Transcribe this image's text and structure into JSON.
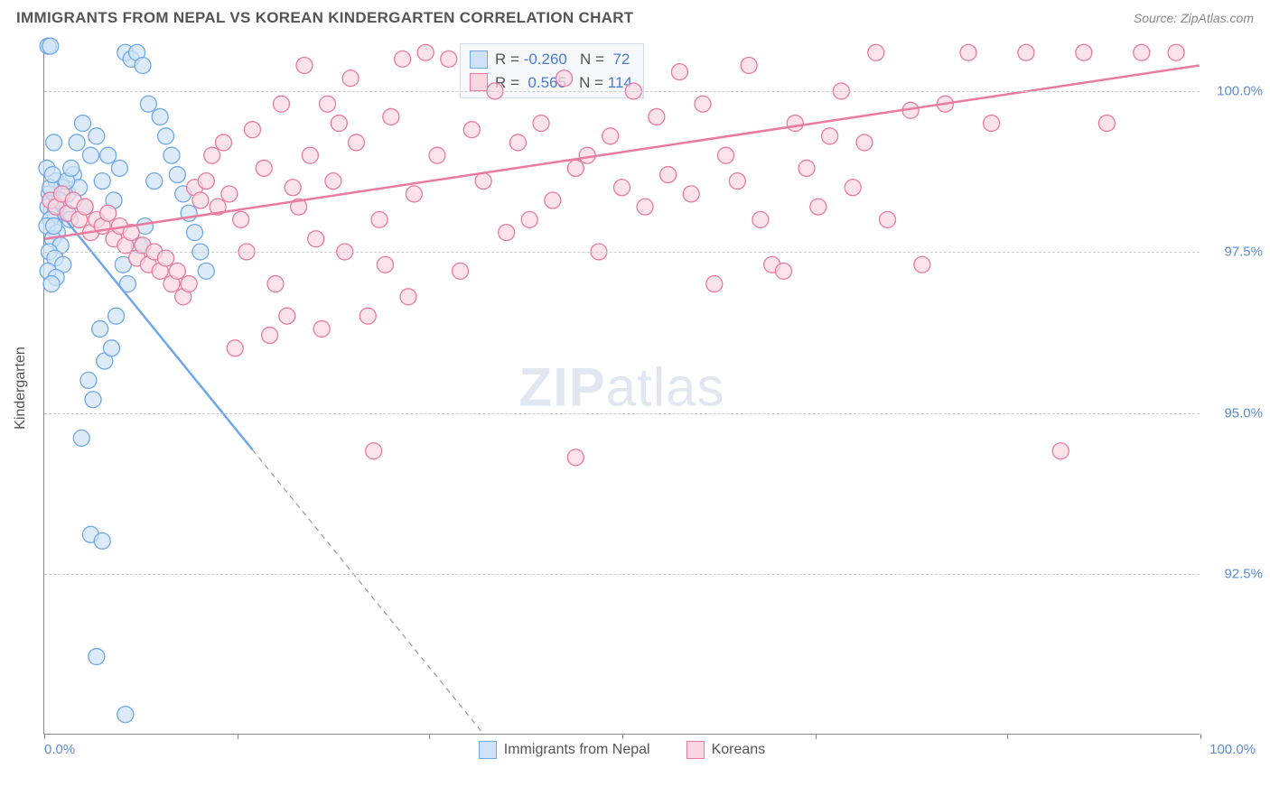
{
  "title": "IMMIGRANTS FROM NEPAL VS KOREAN KINDERGARTEN CORRELATION CHART",
  "source": "Source: ZipAtlas.com",
  "watermark": "ZIPatlas",
  "chart": {
    "type": "scatter",
    "ylabel": "Kindergarten",
    "xlim": [
      0,
      100
    ],
    "ylim": [
      90,
      100.8
    ],
    "yticks": [
      92.5,
      95.0,
      97.5,
      100.0
    ],
    "ytick_labels": [
      "92.5%",
      "95.0%",
      "97.5%",
      "100.0%"
    ],
    "xtick_positions": [
      0,
      16.7,
      33.3,
      50,
      66.7,
      83.3,
      100
    ],
    "xtick_labels_ends": [
      "0.0%",
      "100.0%"
    ],
    "background_color": "#ffffff",
    "grid_color": "#cccccc",
    "series": [
      {
        "name": "Immigrants from Nepal",
        "color_fill": "#cfe2f7",
        "color_stroke": "#6ea8e8",
        "marker_radius": 9,
        "marker_opacity": 0.7,
        "r_value": "-0.260",
        "n_value": "72",
        "trend": {
          "x1": 0,
          "y1": 98.4,
          "x2": 38,
          "y2": 90.0,
          "solid_until_x": 18
        },
        "points": [
          [
            0.3,
            100.7
          ],
          [
            0.5,
            100.7
          ],
          [
            0.8,
            99.2
          ],
          [
            0.2,
            98.8
          ],
          [
            1.0,
            98.6
          ],
          [
            1.5,
            98.5
          ],
          [
            0.4,
            98.4
          ],
          [
            2.0,
            98.4
          ],
          [
            0.6,
            98.3
          ],
          [
            1.2,
            98.2
          ],
          [
            0.3,
            98.2
          ],
          [
            0.9,
            98.1
          ],
          [
            1.8,
            98.1
          ],
          [
            0.5,
            98.0
          ],
          [
            2.2,
            98.0
          ],
          [
            0.2,
            97.9
          ],
          [
            1.1,
            97.8
          ],
          [
            0.7,
            97.7
          ],
          [
            1.4,
            97.6
          ],
          [
            0.4,
            97.5
          ],
          [
            0.9,
            97.4
          ],
          [
            1.6,
            97.3
          ],
          [
            0.3,
            97.2
          ],
          [
            1.0,
            97.1
          ],
          [
            0.6,
            97.0
          ],
          [
            2.5,
            98.7
          ],
          [
            3.0,
            98.5
          ],
          [
            3.5,
            98.2
          ],
          [
            4.0,
            99.0
          ],
          [
            4.5,
            99.3
          ],
          [
            5.0,
            98.6
          ],
          [
            5.5,
            99.0
          ],
          [
            6.0,
            98.3
          ],
          [
            6.5,
            98.8
          ],
          [
            7.0,
            100.6
          ],
          [
            7.5,
            100.5
          ],
          [
            8.0,
            100.6
          ],
          [
            8.5,
            100.4
          ],
          [
            9.0,
            99.8
          ],
          [
            10.0,
            99.6
          ],
          [
            10.5,
            99.3
          ],
          [
            11.0,
            99.0
          ],
          [
            11.5,
            98.7
          ],
          [
            12.0,
            98.4
          ],
          [
            12.5,
            98.1
          ],
          [
            13.0,
            97.8
          ],
          [
            13.5,
            97.5
          ],
          [
            14.0,
            97.2
          ],
          [
            9.5,
            98.6
          ],
          [
            8.7,
            97.9
          ],
          [
            8.2,
            97.6
          ],
          [
            7.2,
            97.0
          ],
          [
            6.2,
            96.5
          ],
          [
            5.2,
            95.8
          ],
          [
            4.2,
            95.2
          ],
          [
            3.2,
            94.6
          ],
          [
            5.8,
            96.0
          ],
          [
            4.8,
            96.3
          ],
          [
            6.8,
            97.3
          ],
          [
            3.8,
            95.5
          ],
          [
            4.0,
            93.1
          ],
          [
            5.0,
            93.0
          ],
          [
            4.5,
            91.2
          ],
          [
            7.0,
            90.3
          ],
          [
            0.8,
            97.9
          ],
          [
            1.3,
            98.3
          ],
          [
            0.5,
            98.5
          ],
          [
            1.9,
            98.6
          ],
          [
            0.7,
            98.7
          ],
          [
            2.3,
            98.8
          ],
          [
            2.8,
            99.2
          ],
          [
            3.3,
            99.5
          ]
        ]
      },
      {
        "name": "Koreans",
        "color_fill": "#fad7e0",
        "color_stroke": "#e97aa0",
        "marker_radius": 9,
        "marker_opacity": 0.7,
        "r_value": "0.565",
        "n_value": "114",
        "trend": {
          "x1": 0,
          "y1": 97.7,
          "x2": 100,
          "y2": 100.4,
          "solid_until_x": 100
        },
        "points": [
          [
            0.5,
            98.3
          ],
          [
            1.0,
            98.2
          ],
          [
            1.5,
            98.4
          ],
          [
            2.0,
            98.1
          ],
          [
            2.5,
            98.3
          ],
          [
            3.0,
            98.0
          ],
          [
            3.5,
            98.2
          ],
          [
            4.0,
            97.8
          ],
          [
            4.5,
            98.0
          ],
          [
            5.0,
            97.9
          ],
          [
            5.5,
            98.1
          ],
          [
            6.0,
            97.7
          ],
          [
            6.5,
            97.9
          ],
          [
            7.0,
            97.6
          ],
          [
            7.5,
            97.8
          ],
          [
            8.0,
            97.4
          ],
          [
            8.5,
            97.6
          ],
          [
            9.0,
            97.3
          ],
          [
            9.5,
            97.5
          ],
          [
            10.0,
            97.2
          ],
          [
            10.5,
            97.4
          ],
          [
            11.0,
            97.0
          ],
          [
            11.5,
            97.2
          ],
          [
            12.0,
            96.8
          ],
          [
            12.5,
            97.0
          ],
          [
            13.0,
            98.5
          ],
          [
            13.5,
            98.3
          ],
          [
            14.0,
            98.6
          ],
          [
            14.5,
            99.0
          ],
          [
            15.0,
            98.2
          ],
          [
            15.5,
            99.2
          ],
          [
            16.0,
            98.4
          ],
          [
            17.0,
            98.0
          ],
          [
            18.0,
            99.4
          ],
          [
            19.0,
            98.8
          ],
          [
            20.0,
            97.0
          ],
          [
            21.0,
            96.5
          ],
          [
            22.0,
            98.2
          ],
          [
            23.0,
            99.0
          ],
          [
            24.0,
            96.3
          ],
          [
            25.0,
            98.6
          ],
          [
            26.0,
            97.5
          ],
          [
            27.0,
            99.2
          ],
          [
            28.0,
            96.5
          ],
          [
            29.0,
            98.0
          ],
          [
            30.0,
            99.6
          ],
          [
            31.0,
            100.5
          ],
          [
            32.0,
            98.4
          ],
          [
            33.0,
            100.6
          ],
          [
            34.0,
            99.0
          ],
          [
            35.0,
            100.5
          ],
          [
            36.0,
            97.2
          ],
          [
            37.0,
            99.4
          ],
          [
            38.0,
            98.6
          ],
          [
            39.0,
            100.0
          ],
          [
            40.0,
            97.8
          ],
          [
            41.0,
            99.2
          ],
          [
            42.0,
            98.0
          ],
          [
            43.0,
            99.5
          ],
          [
            44.0,
            98.3
          ],
          [
            45.0,
            100.2
          ],
          [
            46.0,
            98.8
          ],
          [
            47.0,
            99.0
          ],
          [
            48.0,
            97.5
          ],
          [
            49.0,
            99.3
          ],
          [
            50.0,
            98.5
          ],
          [
            51.0,
            100.0
          ],
          [
            52.0,
            98.2
          ],
          [
            53.0,
            99.6
          ],
          [
            54.0,
            98.7
          ],
          [
            55.0,
            100.3
          ],
          [
            56.0,
            98.4
          ],
          [
            57.0,
            99.8
          ],
          [
            58.0,
            97.0
          ],
          [
            59.0,
            99.0
          ],
          [
            60.0,
            98.6
          ],
          [
            61.0,
            100.4
          ],
          [
            62.0,
            98.0
          ],
          [
            63.0,
            97.3
          ],
          [
            65.0,
            99.5
          ],
          [
            67.0,
            98.2
          ],
          [
            69.0,
            100.0
          ],
          [
            71.0,
            99.2
          ],
          [
            64.0,
            97.2
          ],
          [
            66.0,
            98.8
          ],
          [
            68.0,
            99.3
          ],
          [
            70.0,
            98.5
          ],
          [
            72.0,
            100.6
          ],
          [
            73.0,
            98.0
          ],
          [
            75.0,
            99.7
          ],
          [
            76.0,
            97.3
          ],
          [
            78.0,
            99.8
          ],
          [
            80.0,
            100.6
          ],
          [
            82.0,
            99.5
          ],
          [
            85.0,
            100.6
          ],
          [
            88.0,
            94.4
          ],
          [
            90.0,
            100.6
          ],
          [
            92.0,
            99.5
          ],
          [
            95.0,
            100.6
          ],
          [
            98.0,
            100.6
          ],
          [
            46.0,
            94.3
          ],
          [
            28.5,
            94.4
          ],
          [
            19.5,
            96.2
          ],
          [
            16.5,
            96.0
          ],
          [
            20.5,
            99.8
          ],
          [
            22.5,
            100.4
          ],
          [
            24.5,
            99.8
          ],
          [
            26.5,
            100.2
          ],
          [
            17.5,
            97.5
          ],
          [
            21.5,
            98.5
          ],
          [
            23.5,
            97.7
          ],
          [
            25.5,
            99.5
          ],
          [
            29.5,
            97.3
          ],
          [
            31.5,
            96.8
          ]
        ]
      }
    ],
    "legend_labels": [
      "Immigrants from Nepal",
      "Koreans"
    ]
  }
}
